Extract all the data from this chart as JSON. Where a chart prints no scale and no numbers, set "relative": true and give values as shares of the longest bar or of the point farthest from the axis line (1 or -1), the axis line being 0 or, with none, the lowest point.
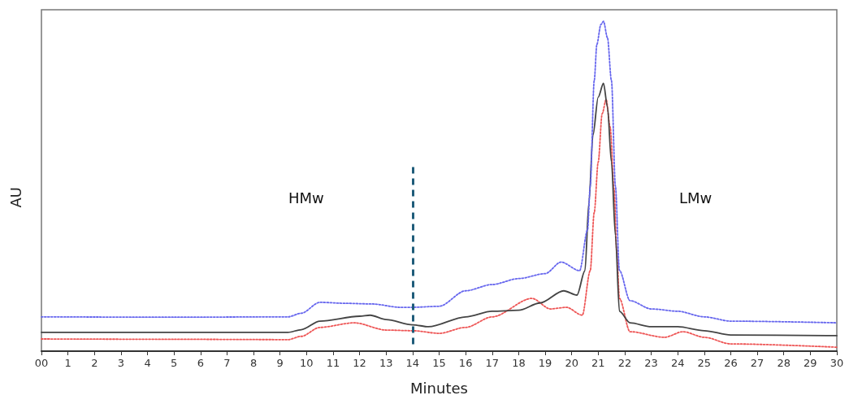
{
  "chart_data": {
    "type": "line",
    "xlabel": "Minutes",
    "ylabel": "AU",
    "relative": true,
    "marker": "none",
    "grid": false,
    "xlim": [
      0,
      30
    ],
    "xticks": [
      {
        "value": 0,
        "label": "00"
      },
      1,
      2,
      3,
      4,
      5,
      6,
      7,
      8,
      9,
      10,
      11,
      12,
      13,
      14,
      15,
      16,
      17,
      18,
      19,
      20,
      21,
      22,
      23,
      24,
      25,
      26,
      27,
      28,
      29,
      30
    ],
    "annotations": [
      "HMw",
      "LMw"
    ],
    "ref_lines": [
      {
        "axis": "x",
        "value": 14,
        "label": null,
        "color": "#1f5c7a",
        "line_style": "dashed"
      }
    ],
    "series": [
      {
        "color": "#6666ee",
        "line_style": "dotted",
        "x": [
          0,
          5,
          9.3,
          9.8,
          10.5,
          11.5,
          12.5,
          13.5,
          14,
          15,
          16,
          17,
          18,
          19,
          19.6,
          20.3,
          20.6,
          20.7,
          20.85,
          20.95,
          21.1,
          21.2,
          21.35,
          21.5,
          21.65,
          21.8,
          22.2,
          23,
          24,
          25,
          26,
          30
        ],
        "values": [
          0.104,
          0.103,
          0.104,
          0.115,
          0.148,
          0.145,
          0.143,
          0.133,
          0.133,
          0.136,
          0.183,
          0.202,
          0.22,
          0.235,
          0.27,
          0.244,
          0.368,
          0.5,
          0.82,
          0.93,
          0.99,
          1.0,
          0.95,
          0.82,
          0.5,
          0.245,
          0.153,
          0.128,
          0.121,
          0.104,
          0.091,
          0.086
        ]
      },
      {
        "color": "#444444",
        "line_style": "solid",
        "x": [
          0,
          5,
          9.3,
          9.8,
          10.5,
          12,
          12.4,
          13,
          14,
          14.6,
          16,
          17,
          18,
          18.8,
          19.7,
          20.2,
          20.5,
          20.65,
          20.8,
          21.0,
          21.2,
          21.35,
          21.5,
          21.65,
          21.8,
          22.2,
          23,
          24,
          25,
          26,
          30
        ],
        "values": [
          0.057,
          0.057,
          0.057,
          0.065,
          0.091,
          0.106,
          0.109,
          0.096,
          0.08,
          0.074,
          0.104,
          0.121,
          0.124,
          0.146,
          0.183,
          0.17,
          0.244,
          0.45,
          0.654,
          0.77,
          0.812,
          0.74,
          0.573,
          0.35,
          0.121,
          0.086,
          0.074,
          0.074,
          0.062,
          0.049,
          0.047
        ]
      },
      {
        "color": "#ee5555",
        "line_style": "dotted",
        "x": [
          0,
          5,
          9.3,
          9.8,
          10.5,
          11.8,
          13,
          14,
          15,
          16,
          17,
          18.5,
          19.2,
          19.8,
          20.4,
          20.7,
          20.85,
          21,
          21.15,
          21.3,
          21.45,
          21.6,
          21.7,
          21.8,
          22.2,
          23.5,
          24.2,
          25,
          26,
          30
        ],
        "values": [
          0.037,
          0.036,
          0.035,
          0.045,
          0.072,
          0.086,
          0.064,
          0.062,
          0.054,
          0.072,
          0.104,
          0.16,
          0.128,
          0.133,
          0.109,
          0.244,
          0.42,
          0.573,
          0.72,
          0.763,
          0.68,
          0.491,
          0.3,
          0.16,
          0.059,
          0.042,
          0.059,
          0.042,
          0.022,
          0.012
        ]
      }
    ]
  }
}
